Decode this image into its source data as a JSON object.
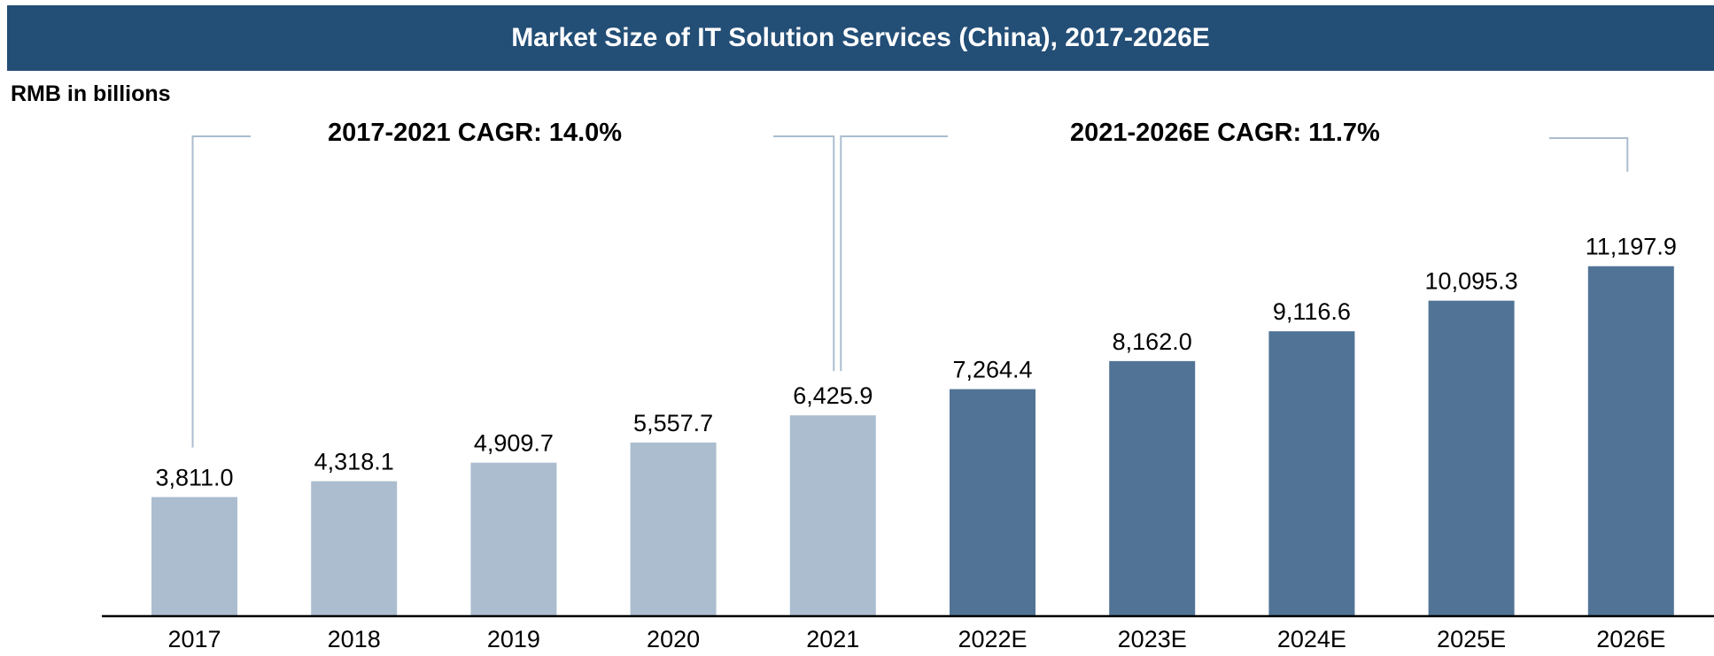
{
  "colors": {
    "title_bg": "#234e76",
    "historical": "#abbdcf",
    "forecast": "#517496",
    "bracket": "#abbdcf",
    "axis": "#000000"
  },
  "chart_data": {
    "type": "bar",
    "title": "Market Size of IT Solution Services (China), 2017-2026E",
    "ylabel": "RMB in billions",
    "xlabel": "",
    "categories": [
      "2017",
      "2018",
      "2019",
      "2020",
      "2021",
      "2022E",
      "2023E",
      "2024E",
      "2025E",
      "2026E"
    ],
    "values": [
      3811.0,
      4318.1,
      4909.7,
      5557.7,
      6425.9,
      7264.4,
      8162.0,
      9116.6,
      10095.3,
      11197.9
    ],
    "value_labels": [
      "3,811.0",
      "4,318.1",
      "4,909.7",
      "5,557.7",
      "6,425.9",
      "7,264.4",
      "8,162.0",
      "9,116.6",
      "10,095.3",
      "11,197.9"
    ],
    "series_type": [
      "historical",
      "historical",
      "historical",
      "historical",
      "historical",
      "forecast",
      "forecast",
      "forecast",
      "forecast",
      "forecast"
    ],
    "ylim": [
      0,
      12000
    ],
    "grid": false,
    "annotations": [
      {
        "text": "2017-2021 CAGR: 14.0%",
        "from": "2017",
        "to": "2021"
      },
      {
        "text": "2021-2026E CAGR: 11.7%",
        "from": "2021",
        "to": "2026E"
      }
    ]
  }
}
